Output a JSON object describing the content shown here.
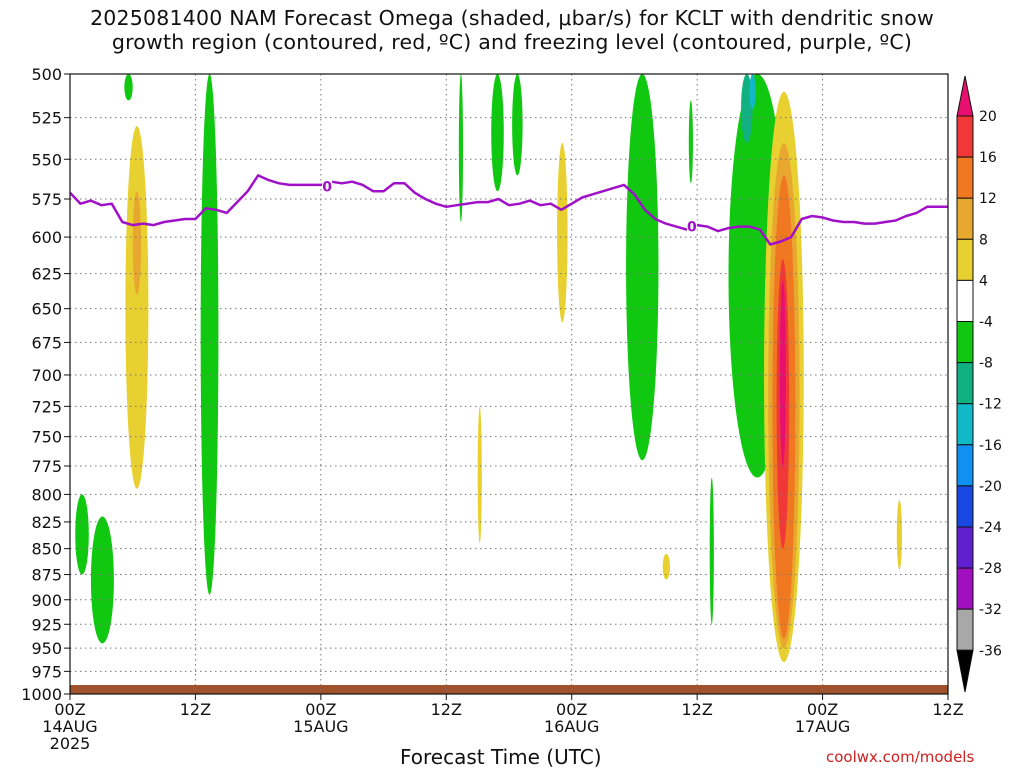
{
  "title": {
    "line1": "2025081400 NAM Forecast Omega (shaded, μbar/s) for KCLT with dendritic snow",
    "line2": "growth region (contoured, red, ºC) and freezing level (contoured, purple, ºC)"
  },
  "xlabel": "Forecast Time (UTC)",
  "credit": "coolwx.com/models",
  "chart_data": {
    "type": "heatmap",
    "title": "2025081400 NAM Forecast Omega (shaded, μbar/s) for KCLT with dendritic snow growth region (contoured, red, ºC) and freezing level (contoured, purple, ºC)",
    "xlabel": "Forecast Time (UTC)",
    "ylabel": "",
    "x_unit": "forecast hour from 2025-08-14 00Z",
    "x_range": [
      0,
      84
    ],
    "y_range": [
      1000,
      500
    ],
    "y_scale": "log-pressure",
    "grid": true,
    "x_ticks": [
      {
        "h": 0,
        "l1": "00Z",
        "l2": "14AUG",
        "l3": "2025"
      },
      {
        "h": 12,
        "l1": "12Z",
        "l2": "",
        "l3": ""
      },
      {
        "h": 24,
        "l1": "00Z",
        "l2": "15AUG",
        "l3": ""
      },
      {
        "h": 36,
        "l1": "12Z",
        "l2": "",
        "l3": ""
      },
      {
        "h": 48,
        "l1": "00Z",
        "l2": "16AUG",
        "l3": ""
      },
      {
        "h": 60,
        "l1": "12Z",
        "l2": "",
        "l3": ""
      },
      {
        "h": 72,
        "l1": "00Z",
        "l2": "17AUG",
        "l3": ""
      },
      {
        "h": 84,
        "l1": "12Z",
        "l2": "",
        "l3": ""
      }
    ],
    "y_ticks": [
      500,
      525,
      550,
      575,
      600,
      625,
      650,
      675,
      700,
      725,
      750,
      775,
      800,
      825,
      850,
      875,
      900,
      925,
      950,
      975,
      1000
    ],
    "colorbar": {
      "title": "",
      "levels": [
        20,
        16,
        12,
        8,
        4,
        -4,
        -8,
        -12,
        -16,
        -20,
        -24,
        -28,
        -32,
        -36
      ],
      "colors": [
        "#e8106e",
        "#f03838",
        "#f07820",
        "#e8a830",
        "#e8d030",
        "#ffffff",
        "#10c810",
        "#10b080",
        "#10b8c8",
        "#1090f0",
        "#1848e0",
        "#6020d0",
        "#a010c0",
        "#a8a8a8",
        "#000000"
      ],
      "top_arrow_color": "#e8106e",
      "bottom_arrow_color": "#000000"
    },
    "freezing_level": {
      "label": "0",
      "color": "#a010c8",
      "points": [
        [
          0,
          571
        ],
        [
          1,
          578
        ],
        [
          2,
          576
        ],
        [
          3,
          579
        ],
        [
          4,
          578
        ],
        [
          5,
          590
        ],
        [
          6,
          592
        ],
        [
          7,
          591
        ],
        [
          8,
          592
        ],
        [
          9,
          590
        ],
        [
          10,
          589
        ],
        [
          11,
          588
        ],
        [
          12,
          588
        ],
        [
          13,
          581
        ],
        [
          14,
          582
        ],
        [
          15,
          584
        ],
        [
          16,
          577
        ],
        [
          17,
          570
        ],
        [
          18,
          560
        ],
        [
          19,
          563
        ],
        [
          20,
          565
        ],
        [
          21,
          566
        ],
        [
          22,
          566
        ],
        [
          23,
          566
        ],
        [
          24,
          566
        ],
        [
          25,
          564
        ],
        [
          26,
          565
        ],
        [
          27,
          564
        ],
        [
          28,
          566
        ],
        [
          29,
          570
        ],
        [
          30,
          570
        ],
        [
          31,
          565
        ],
        [
          32,
          565
        ],
        [
          33,
          571
        ],
        [
          34,
          575
        ],
        [
          35,
          578
        ],
        [
          36,
          580
        ],
        [
          37,
          579
        ],
        [
          38,
          578
        ],
        [
          39,
          577
        ],
        [
          40,
          577
        ],
        [
          41,
          575
        ],
        [
          42,
          579
        ],
        [
          43,
          578
        ],
        [
          44,
          576
        ],
        [
          45,
          579
        ],
        [
          46,
          578
        ],
        [
          47,
          582
        ],
        [
          48,
          578
        ],
        [
          49,
          574
        ],
        [
          50,
          572
        ],
        [
          51,
          570
        ],
        [
          52,
          568
        ],
        [
          53,
          566
        ],
        [
          54,
          572
        ],
        [
          55,
          582
        ],
        [
          56,
          588
        ],
        [
          57,
          591
        ],
        [
          58,
          593
        ],
        [
          59,
          595
        ],
        [
          60,
          592
        ],
        [
          61,
          593
        ],
        [
          62,
          596
        ],
        [
          63,
          594
        ],
        [
          64,
          593
        ],
        [
          65,
          593
        ],
        [
          66,
          595
        ],
        [
          67,
          605
        ],
        [
          68,
          603
        ],
        [
          69,
          600
        ],
        [
          70,
          588
        ],
        [
          71,
          586
        ],
        [
          72,
          587
        ],
        [
          73,
          589
        ],
        [
          74,
          590
        ],
        [
          75,
          590
        ],
        [
          76,
          591
        ],
        [
          77,
          591
        ],
        [
          78,
          590
        ],
        [
          79,
          589
        ],
        [
          80,
          586
        ],
        [
          81,
          584
        ],
        [
          82,
          580
        ],
        [
          83,
          580
        ],
        [
          84,
          580
        ]
      ]
    },
    "omega_regions": [
      {
        "level": -4,
        "hours": [
          12.5,
          14.2
        ],
        "p": [
          500,
          895
        ]
      },
      {
        "level": -4,
        "hours": [
          0.5,
          1.8
        ],
        "p": [
          800,
          875
        ]
      },
      {
        "level": -4,
        "hours": [
          2.0,
          4.2
        ],
        "p": [
          820,
          945
        ]
      },
      {
        "level": -4,
        "hours": [
          5.2,
          6.0
        ],
        "p": [
          500,
          515
        ]
      },
      {
        "level": -4,
        "hours": [
          37.2,
          37.6
        ],
        "p": [
          500,
          590
        ]
      },
      {
        "level": -4,
        "hours": [
          40.3,
          41.5
        ],
        "p": [
          500,
          570
        ]
      },
      {
        "level": -4,
        "hours": [
          42.3,
          43.3
        ],
        "p": [
          500,
          560
        ]
      },
      {
        "level": -4,
        "hours": [
          53.2,
          56.3
        ],
        "p": [
          500,
          770
        ]
      },
      {
        "level": -4,
        "hours": [
          59.2,
          59.6
        ],
        "p": [
          515,
          565
        ]
      },
      {
        "level": -4,
        "hours": [
          61.2,
          61.6
        ],
        "p": [
          785,
          925
        ]
      },
      {
        "level": -4,
        "hours": [
          63.0,
          68.5
        ],
        "p": [
          500,
          785
        ]
      },
      {
        "level": -8,
        "hours": [
          64.2,
          65.3
        ],
        "p": [
          500,
          540
        ]
      },
      {
        "level": -12,
        "hours": [
          65.0,
          65.6
        ],
        "p": [
          500,
          520
        ]
      },
      {
        "level": 4,
        "hours": [
          5.3,
          7.5
        ],
        "p": [
          530,
          795
        ]
      },
      {
        "level": 8,
        "hours": [
          6.0,
          6.8
        ],
        "p": [
          570,
          640
        ]
      },
      {
        "level": 4,
        "hours": [
          46.6,
          47.6
        ],
        "p": [
          540,
          660
        ]
      },
      {
        "level": 4,
        "hours": [
          39.0,
          39.4
        ],
        "p": [
          725,
          845
        ]
      },
      {
        "level": 4,
        "hours": [
          56.7,
          57.4
        ],
        "p": [
          855,
          880
        ]
      },
      {
        "level": 4,
        "hours": [
          79.1,
          79.6
        ],
        "p": [
          805,
          870
        ]
      },
      {
        "level": 4,
        "hours": [
          66.4,
          70.2
        ],
        "p": [
          510,
          965
        ]
      },
      {
        "level": 8,
        "hours": [
          66.8,
          69.8
        ],
        "p": [
          540,
          950
        ]
      },
      {
        "level": 12,
        "hours": [
          67.2,
          69.4
        ],
        "p": [
          560,
          940
        ]
      },
      {
        "level": 16,
        "hours": [
          67.6,
          68.8
        ],
        "p": [
          615,
          850
        ]
      },
      {
        "level": 20,
        "hours": [
          67.9,
          68.5
        ],
        "p": [
          630,
          775
        ]
      }
    ],
    "terrain": {
      "color": "#a0522d",
      "surface_pressure_approx": 990
    }
  }
}
